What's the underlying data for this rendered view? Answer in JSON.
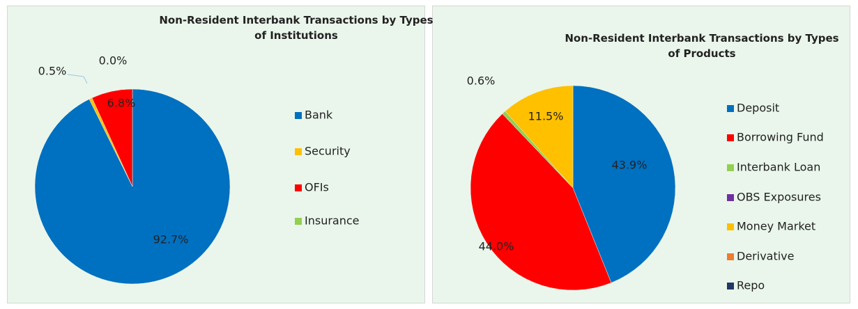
{
  "chart_data": [
    {
      "type": "pie",
      "title": "Non-Resident Interbank Transactions by Types of Institutions",
      "categories": [
        "Bank",
        "Security",
        "OFIs",
        "Insurance"
      ],
      "values": [
        92.7,
        0.5,
        6.8,
        0.0
      ],
      "value_labels": [
        "92.7%",
        "0.5%",
        "6.8%",
        "0.0%"
      ],
      "colors": [
        "#0070c0",
        "#ffc000",
        "#ff0000",
        "#92d050"
      ],
      "legend": "right"
    },
    {
      "type": "pie",
      "title": "Non-Resident Interbank Transactions by Types of Products",
      "categories": [
        "Deposit",
        "Borrowing Fund",
        "Interbank Loan",
        "OBS Exposures",
        "Money Market",
        "Derivative",
        "Repo"
      ],
      "values": [
        43.9,
        44.0,
        0.6,
        0.0,
        11.5,
        0.0,
        0.0
      ],
      "value_labels": [
        "43.9%",
        "44.0%",
        "0.6%",
        null,
        "11.5%",
        null,
        null
      ],
      "colors": [
        "#0070c0",
        "#ff0000",
        "#92d050",
        "#7030a0",
        "#ffc000",
        "#ed7d31",
        "#1f3864"
      ],
      "legend": "right"
    }
  ]
}
